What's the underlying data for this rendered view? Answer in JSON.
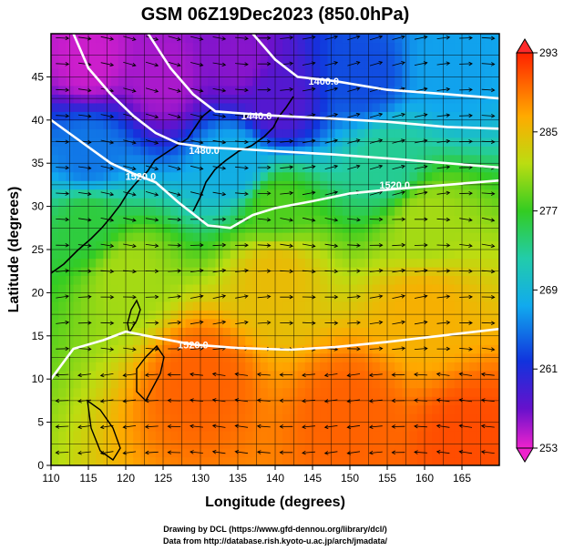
{
  "chart_data": {
    "type": "heatmap",
    "title": "GSM 06Z19Dec2023 (850.0hPa)",
    "xlabel": "Longitude (degrees)",
    "ylabel": "Latitude  (degrees)",
    "xlim": [
      110,
      170
    ],
    "ylim": [
      0,
      50
    ],
    "x_ticks": [
      110,
      115,
      120,
      125,
      130,
      135,
      140,
      145,
      150,
      155,
      160,
      165
    ],
    "y_ticks": [
      0,
      5,
      10,
      15,
      20,
      25,
      30,
      35,
      40,
      45
    ],
    "colorbar": {
      "min": 253,
      "max": 293,
      "tick_values": [
        253,
        261,
        269,
        277,
        285,
        293
      ],
      "tick_labels": [
        "253",
        "261",
        "269",
        "277",
        "285",
        "293"
      ]
    },
    "contour_labels": [
      {
        "text": "1400.0",
        "lon": 146.5,
        "lat": 44.5
      },
      {
        "text": "1440.0",
        "lon": 137.5,
        "lat": 40.5
      },
      {
        "text": "1480.0",
        "lon": 130.5,
        "lat": 36.5
      },
      {
        "text": "1520.0",
        "lon": 122,
        "lat": 33.5
      },
      {
        "text": "1520.0",
        "lon": 156,
        "lat": 32.5
      },
      {
        "text": "1520.0",
        "lon": 129,
        "lat": 14
      }
    ],
    "contours": [
      {
        "level": "1400",
        "points": [
          [
            137,
            50
          ],
          [
            140,
            47
          ],
          [
            143,
            45
          ],
          [
            148,
            44.5
          ],
          [
            155,
            43.5
          ],
          [
            163,
            43
          ],
          [
            170,
            42.5
          ]
        ]
      },
      {
        "level": "1440",
        "points": [
          [
            123,
            50
          ],
          [
            126,
            46
          ],
          [
            129,
            43
          ],
          [
            132,
            41
          ],
          [
            135,
            40.8
          ],
          [
            140,
            40.5
          ],
          [
            147,
            40.2
          ],
          [
            155,
            39.8
          ],
          [
            163,
            39.2
          ],
          [
            170,
            39
          ]
        ]
      },
      {
        "level": "1480",
        "points": [
          [
            113,
            50
          ],
          [
            115,
            46
          ],
          [
            118,
            43
          ],
          [
            121,
            40.5
          ],
          [
            124,
            38.5
          ],
          [
            127,
            37.3
          ],
          [
            131,
            36.8
          ],
          [
            136,
            36.6
          ],
          [
            142,
            36.3
          ],
          [
            148,
            36
          ],
          [
            156,
            35.5
          ],
          [
            163,
            35
          ],
          [
            170,
            34.5
          ]
        ]
      },
      {
        "level": "1520",
        "points": [
          [
            110,
            40
          ],
          [
            114,
            37.5
          ],
          [
            118,
            35
          ],
          [
            121,
            33.8
          ],
          [
            124,
            32.8
          ],
          [
            127,
            30.5
          ],
          [
            131,
            27.8
          ],
          [
            134,
            27.5
          ],
          [
            137,
            29
          ],
          [
            140,
            29.8
          ],
          [
            145,
            30.6
          ],
          [
            150,
            31.5
          ],
          [
            156,
            32
          ],
          [
            163,
            32.5
          ],
          [
            170,
            33
          ]
        ]
      },
      {
        "level": "1520",
        "points": [
          [
            110,
            10
          ],
          [
            113,
            13.5
          ],
          [
            117,
            14.5
          ],
          [
            120,
            15.5
          ],
          [
            124,
            14.8
          ],
          [
            129,
            14
          ],
          [
            135,
            13.6
          ],
          [
            142,
            13.4
          ],
          [
            148,
            13.7
          ],
          [
            155,
            14.3
          ],
          [
            162,
            15
          ],
          [
            170,
            15.8
          ]
        ]
      }
    ],
    "temperature_samples_K": [
      {
        "lon": 115,
        "lat": 47,
        "value": 254
      },
      {
        "lon": 125,
        "lat": 45,
        "value": 255
      },
      {
        "lon": 135,
        "lat": 47,
        "value": 256
      },
      {
        "lon": 140,
        "lat": 42,
        "value": 258
      },
      {
        "lon": 152,
        "lat": 45,
        "value": 263
      },
      {
        "lon": 163,
        "lat": 46,
        "value": 267
      },
      {
        "lon": 115,
        "lat": 36,
        "value": 265
      },
      {
        "lon": 135,
        "lat": 35,
        "value": 268
      },
      {
        "lon": 155,
        "lat": 35,
        "value": 273
      },
      {
        "lon": 115,
        "lat": 28,
        "value": 276
      },
      {
        "lon": 140,
        "lat": 30,
        "value": 278
      },
      {
        "lon": 160,
        "lat": 28,
        "value": 281
      },
      {
        "lon": 120,
        "lat": 22,
        "value": 281
      },
      {
        "lon": 140,
        "lat": 22,
        "value": 285
      },
      {
        "lon": 160,
        "lat": 18,
        "value": 286
      },
      {
        "lon": 130,
        "lat": 10,
        "value": 290
      },
      {
        "lon": 150,
        "lat": 6,
        "value": 290
      },
      {
        "lon": 166,
        "lat": 3,
        "value": 291
      }
    ],
    "grid": true,
    "legend": "colorbar-right"
  },
  "credits": {
    "line1": "Drawing by DCL (https://www.gfd-dennou.org/library/dcl/)",
    "line2": "Data from http://database.rish.kyoto-u.ac.jp/arch/jmadata/"
  }
}
